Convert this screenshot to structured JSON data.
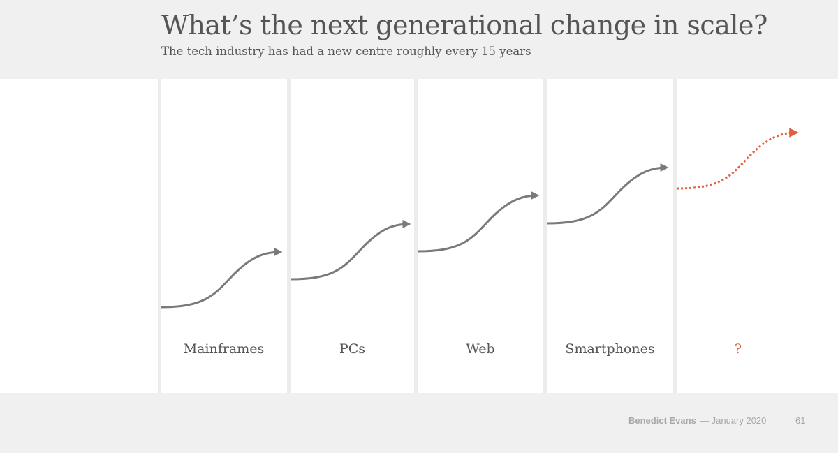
{
  "slide": {
    "title": "What’s the next generational change in scale?",
    "subtitle": "The tech industry has had a new centre roughly every 15 years"
  },
  "diagram": {
    "eras": [
      {
        "label": "Mainframes",
        "style": "solid"
      },
      {
        "label": "PCs",
        "style": "solid"
      },
      {
        "label": "Web",
        "style": "solid"
      },
      {
        "label": "Smartphones",
        "style": "solid"
      },
      {
        "label": "?",
        "style": "dotted"
      }
    ],
    "colors": {
      "curve": "#7a7a7a",
      "future": "#e0613f",
      "divider": "#ececec"
    }
  },
  "footer": {
    "author": "Benedict Evans",
    "date": "— January 2020",
    "page": "61"
  }
}
